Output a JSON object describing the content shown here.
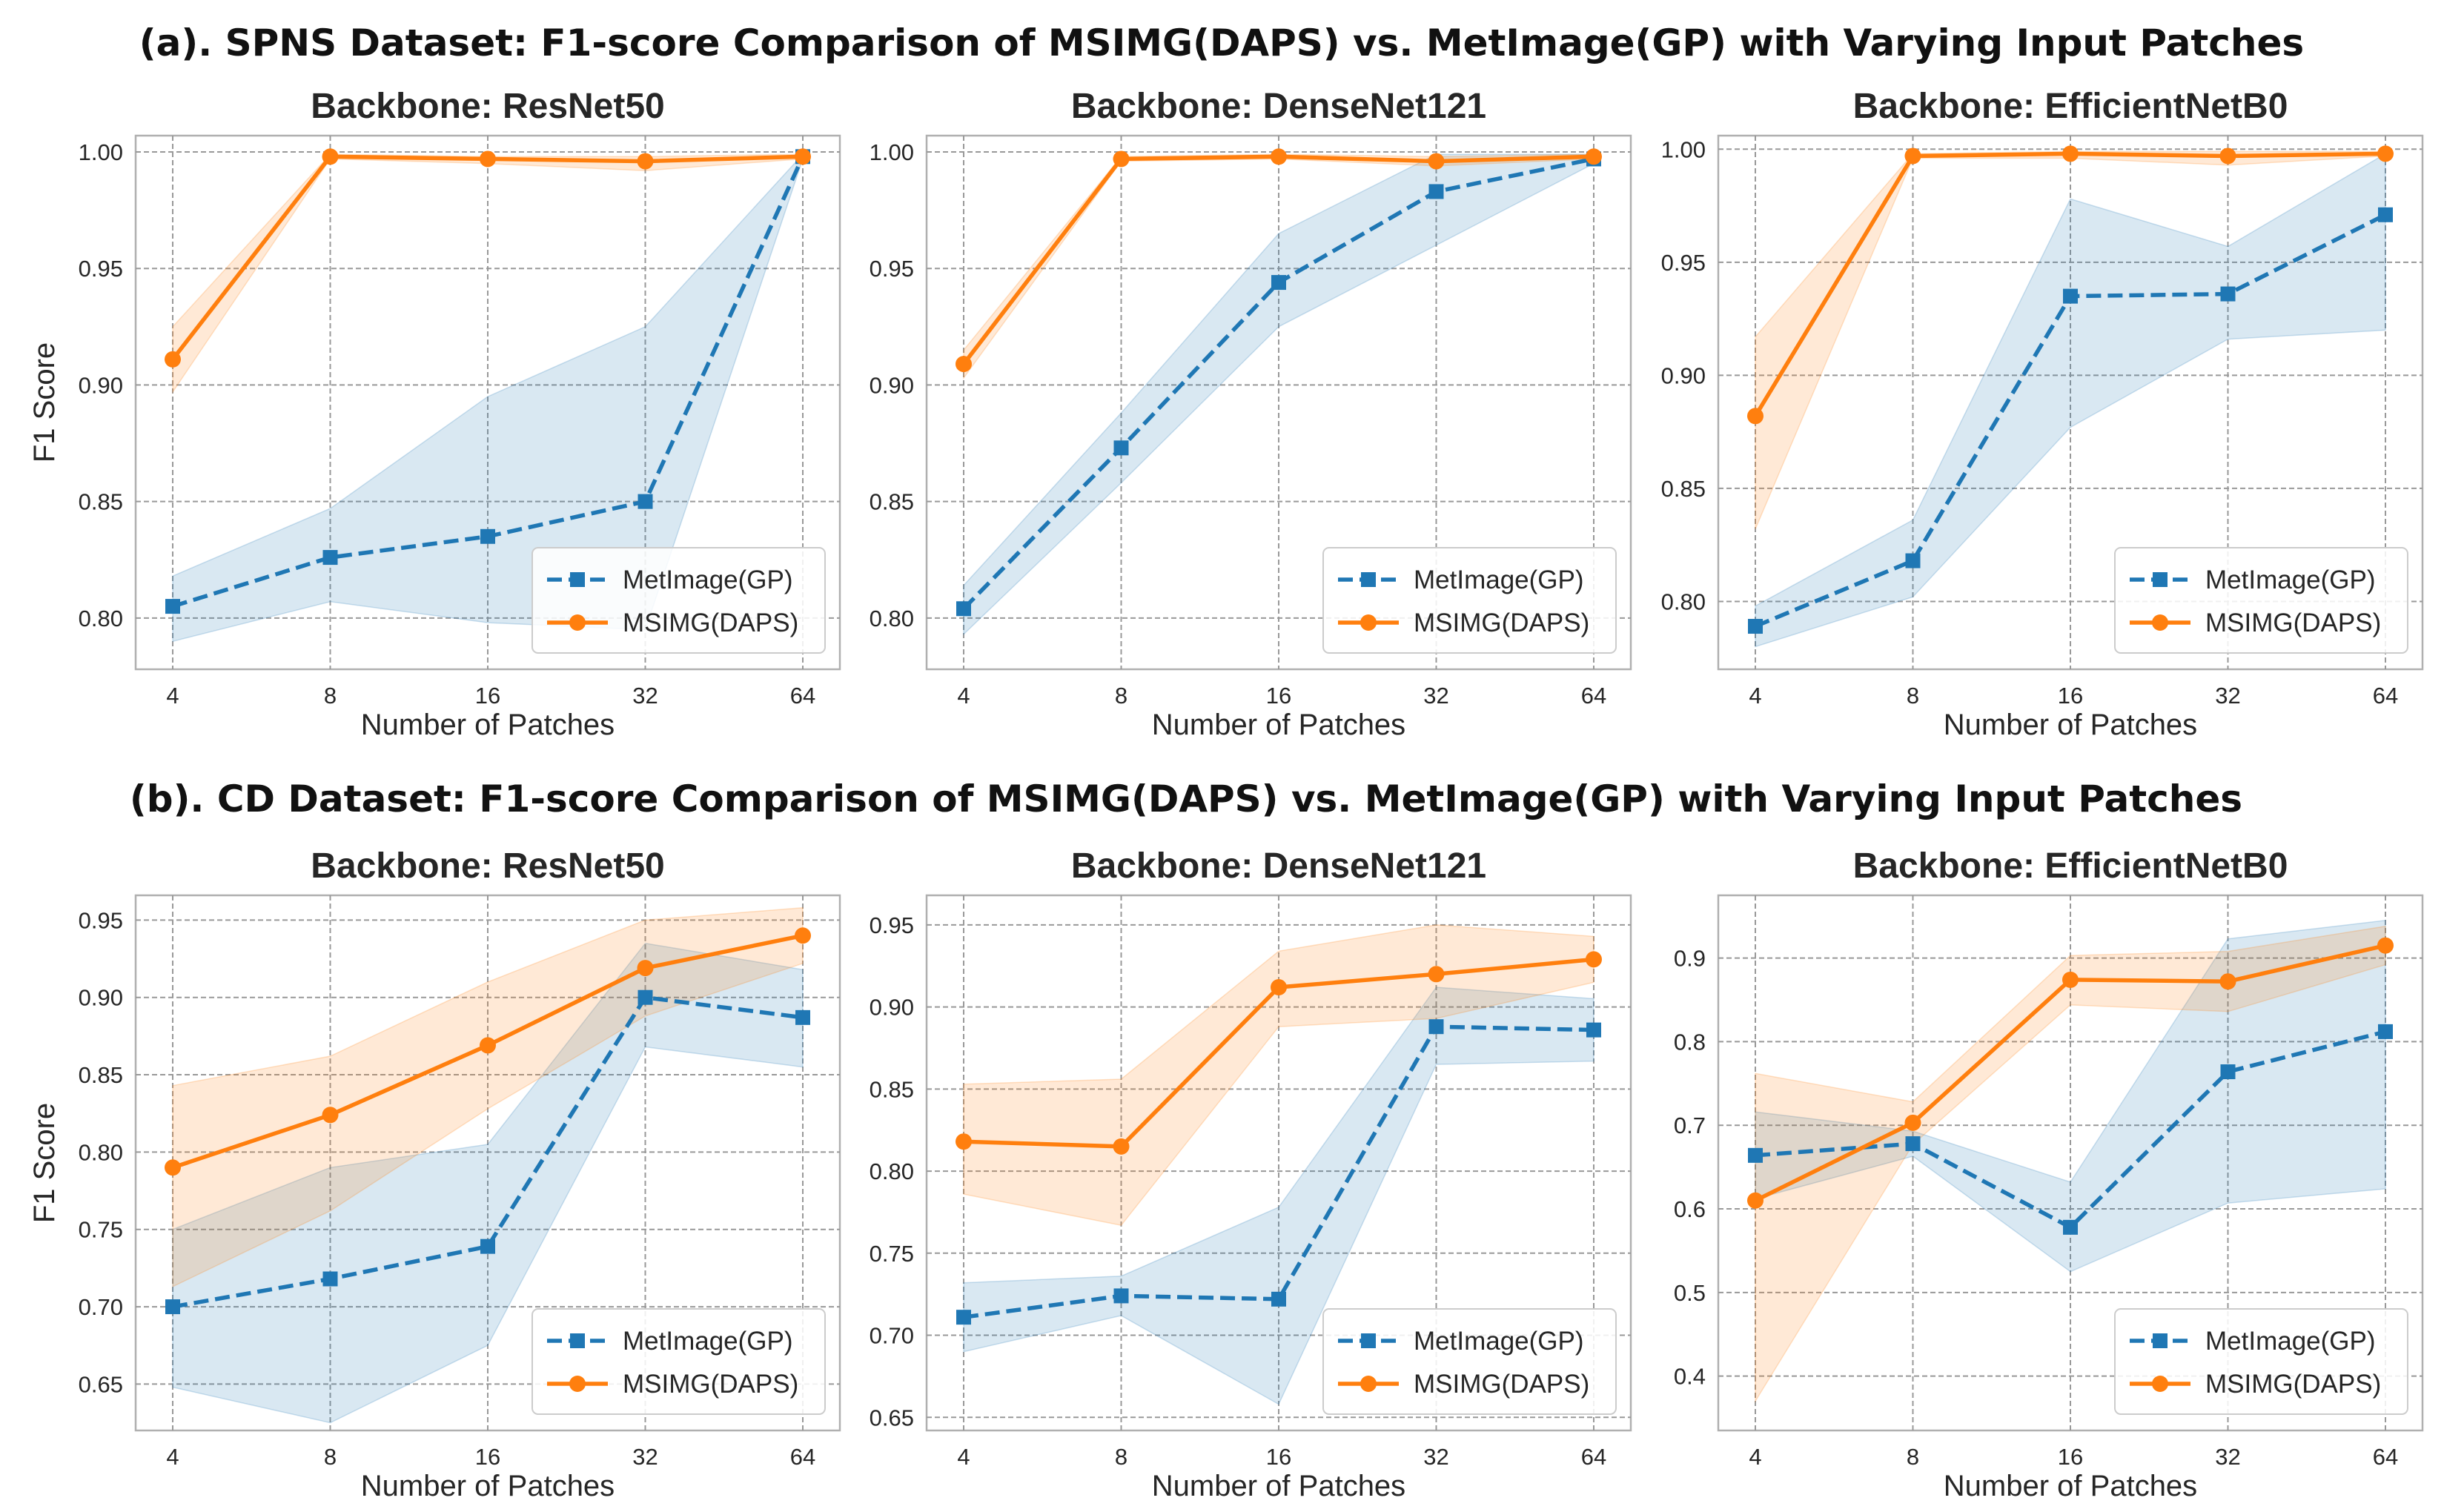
{
  "sections": [
    {
      "title": "(a). SPNS Dataset: F1-score Comparison of MSIMG(DAPS) vs. MetImage(GP) with Varying Input Patches"
    },
    {
      "title": "(b). CD Dataset: F1-score Comparison of MSIMG(DAPS) vs. MetImage(GP) with Varying Input Patches"
    }
  ],
  "colors": {
    "metimage": "#1f77b4",
    "msimg": "#ff7f0e",
    "grid": "#999999",
    "frame": "#b0b0b0"
  },
  "chart_data": [
    {
      "type": "line",
      "section": 0,
      "title": "Backbone: ResNet50",
      "xlabel": "Number of Patches",
      "ylabel": "F1 Score",
      "categories": [
        "4",
        "8",
        "16",
        "32",
        "64"
      ],
      "ylim": [
        0.778,
        1.007
      ],
      "yticks": [
        0.8,
        0.85,
        0.9,
        0.95,
        1.0
      ],
      "ytick_labels": [
        "0.80",
        "0.85",
        "0.90",
        "0.95",
        "1.00"
      ],
      "legend_loc": "lower-right",
      "series": [
        {
          "name": "MetImage(GP)",
          "values": [
            0.805,
            0.826,
            0.835,
            0.85,
            0.998
          ],
          "lower": [
            0.79,
            0.807,
            0.798,
            0.795,
            0.997
          ],
          "upper": [
            0.818,
            0.847,
            0.895,
            0.925,
            0.999
          ]
        },
        {
          "name": "MSIMG(DAPS)",
          "values": [
            0.911,
            0.998,
            0.997,
            0.996,
            0.998
          ],
          "lower": [
            0.897,
            0.997,
            0.995,
            0.992,
            0.997
          ],
          "upper": [
            0.925,
            0.999,
            0.998,
            0.998,
            0.999
          ]
        }
      ]
    },
    {
      "type": "line",
      "section": 0,
      "title": "Backbone: DenseNet121",
      "xlabel": "Number of Patches",
      "ylabel": "",
      "categories": [
        "4",
        "8",
        "16",
        "32",
        "64"
      ],
      "ylim": [
        0.778,
        1.007
      ],
      "yticks": [
        0.8,
        0.85,
        0.9,
        0.95,
        1.0
      ],
      "ytick_labels": [
        "0.80",
        "0.85",
        "0.90",
        "0.95",
        "1.00"
      ],
      "legend_loc": "lower-right",
      "series": [
        {
          "name": "MetImage(GP)",
          "values": [
            0.804,
            0.873,
            0.944,
            0.983,
            0.997
          ],
          "lower": [
            0.793,
            0.858,
            0.925,
            0.96,
            0.995
          ],
          "upper": [
            0.814,
            0.888,
            0.965,
            0.999,
            0.999
          ]
        },
        {
          "name": "MSIMG(DAPS)",
          "values": [
            0.909,
            0.997,
            0.998,
            0.996,
            0.998
          ],
          "lower": [
            0.903,
            0.996,
            0.997,
            0.994,
            0.997
          ],
          "upper": [
            0.915,
            0.998,
            0.999,
            0.998,
            0.999
          ]
        }
      ]
    },
    {
      "type": "line",
      "section": 0,
      "title": "Backbone: EfficientNetB0",
      "xlabel": "Number of Patches",
      "ylabel": "",
      "categories": [
        "4",
        "8",
        "16",
        "32",
        "64"
      ],
      "ylim": [
        0.77,
        1.006
      ],
      "yticks": [
        0.8,
        0.85,
        0.9,
        0.95,
        1.0
      ],
      "ytick_labels": [
        "0.80",
        "0.85",
        "0.90",
        "0.95",
        "1.00"
      ],
      "legend_loc": "lower-right",
      "series": [
        {
          "name": "MetImage(GP)",
          "values": [
            0.789,
            0.818,
            0.935,
            0.936,
            0.971
          ],
          "lower": [
            0.78,
            0.802,
            0.877,
            0.916,
            0.92
          ],
          "upper": [
            0.798,
            0.836,
            0.978,
            0.957,
            0.998
          ]
        },
        {
          "name": "MSIMG(DAPS)",
          "values": [
            0.882,
            0.997,
            0.998,
            0.997,
            0.998
          ],
          "lower": [
            0.832,
            0.996,
            0.996,
            0.993,
            0.997
          ],
          "upper": [
            0.917,
            0.998,
            0.999,
            0.999,
            0.999
          ]
        }
      ]
    },
    {
      "type": "line",
      "section": 1,
      "title": "Backbone: ResNet50",
      "xlabel": "Number of Patches",
      "ylabel": "F1 Score",
      "categories": [
        "4",
        "8",
        "16",
        "32",
        "64"
      ],
      "ylim": [
        0.62,
        0.966
      ],
      "yticks": [
        0.65,
        0.7,
        0.75,
        0.8,
        0.85,
        0.9,
        0.95
      ],
      "ytick_labels": [
        "0.65",
        "0.70",
        "0.75",
        "0.80",
        "0.85",
        "0.90",
        "0.95"
      ],
      "legend_loc": "lower-right",
      "series": [
        {
          "name": "MetImage(GP)",
          "values": [
            0.7,
            0.718,
            0.739,
            0.9,
            0.887
          ],
          "lower": [
            0.648,
            0.625,
            0.675,
            0.868,
            0.855
          ],
          "upper": [
            0.75,
            0.79,
            0.805,
            0.935,
            0.918
          ]
        },
        {
          "name": "MSIMG(DAPS)",
          "values": [
            0.79,
            0.824,
            0.869,
            0.919,
            0.94
          ],
          "lower": [
            0.713,
            0.762,
            0.828,
            0.888,
            0.922
          ],
          "upper": [
            0.843,
            0.862,
            0.91,
            0.95,
            0.958
          ]
        }
      ]
    },
    {
      "type": "line",
      "section": 1,
      "title": "Backbone: DenseNet121",
      "xlabel": "Number of Patches",
      "ylabel": "",
      "categories": [
        "4",
        "8",
        "16",
        "32",
        "64"
      ],
      "ylim": [
        0.642,
        0.968
      ],
      "yticks": [
        0.65,
        0.7,
        0.75,
        0.8,
        0.85,
        0.9,
        0.95
      ],
      "ytick_labels": [
        "0.65",
        "0.70",
        "0.75",
        "0.80",
        "0.85",
        "0.90",
        "0.95"
      ],
      "legend_loc": "lower-right",
      "series": [
        {
          "name": "MetImage(GP)",
          "values": [
            0.711,
            0.724,
            0.722,
            0.888,
            0.886
          ],
          "lower": [
            0.69,
            0.712,
            0.658,
            0.865,
            0.867
          ],
          "upper": [
            0.732,
            0.736,
            0.778,
            0.912,
            0.905
          ]
        },
        {
          "name": "MSIMG(DAPS)",
          "values": [
            0.818,
            0.815,
            0.912,
            0.92,
            0.929
          ],
          "lower": [
            0.786,
            0.767,
            0.888,
            0.893,
            0.915
          ],
          "upper": [
            0.853,
            0.856,
            0.934,
            0.95,
            0.943
          ]
        }
      ]
    },
    {
      "type": "line",
      "section": 1,
      "title": "Backbone: EfficientNetB0",
      "xlabel": "Number of Patches",
      "ylabel": "",
      "categories": [
        "4",
        "8",
        "16",
        "32",
        "64"
      ],
      "ylim": [
        0.335,
        0.975
      ],
      "yticks": [
        0.4,
        0.5,
        0.6,
        0.7,
        0.8,
        0.9
      ],
      "ytick_labels": [
        "0.4",
        "0.5",
        "0.6",
        "0.7",
        "0.8",
        "0.9"
      ],
      "legend_loc": "lower-right",
      "series": [
        {
          "name": "MetImage(GP)",
          "values": [
            0.664,
            0.678,
            0.578,
            0.764,
            0.812
          ],
          "lower": [
            0.612,
            0.663,
            0.525,
            0.607,
            0.624
          ],
          "upper": [
            0.716,
            0.693,
            0.632,
            0.923,
            0.945
          ]
        },
        {
          "name": "MSIMG(DAPS)",
          "values": [
            0.61,
            0.703,
            0.874,
            0.872,
            0.915
          ],
          "lower": [
            0.37,
            0.677,
            0.844,
            0.836,
            0.892
          ],
          "upper": [
            0.762,
            0.728,
            0.903,
            0.908,
            0.938
          ]
        }
      ]
    }
  ]
}
